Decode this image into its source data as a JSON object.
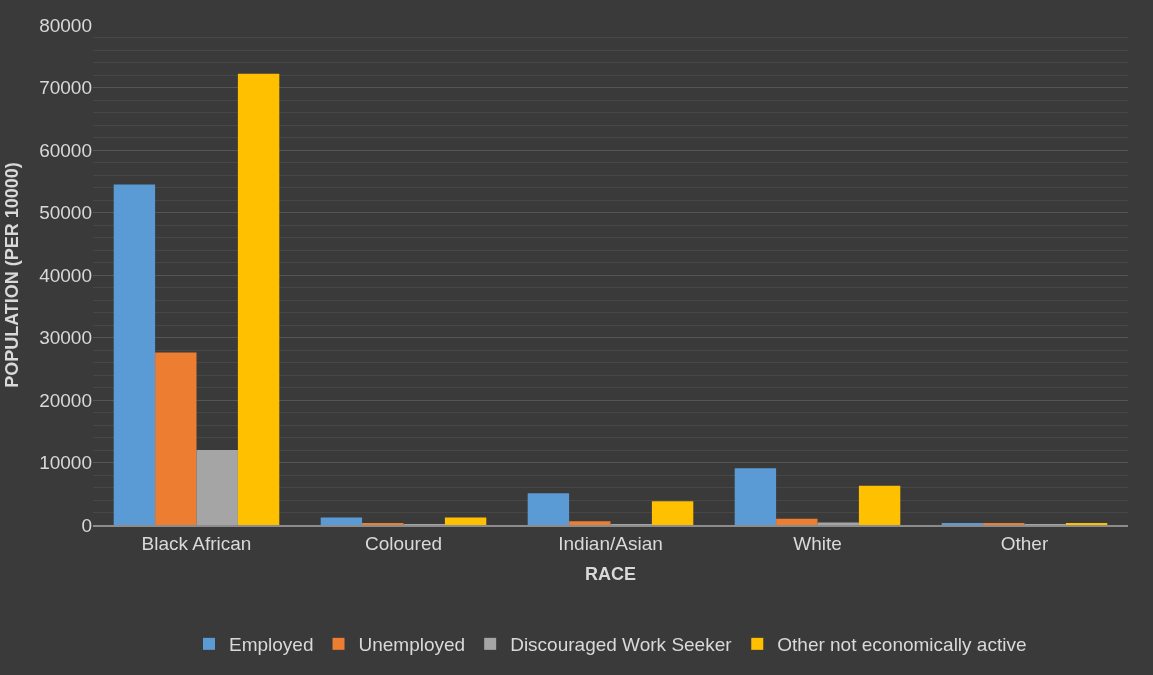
{
  "chart_data": {
    "type": "bar",
    "xlabel": "RACE",
    "ylabel": "POPULATION (PER 10000)",
    "categories": [
      "Black African",
      "Coloured",
      "Indian/Asian",
      "White",
      "Other"
    ],
    "series": [
      {
        "name": "Employed",
        "color": "#5b9bd5",
        "values": [
          54500,
          1200,
          5100,
          9100,
          300
        ]
      },
      {
        "name": "Unemployed",
        "color": "#ed7d31",
        "values": [
          27600,
          300,
          600,
          1000,
          200
        ]
      },
      {
        "name": "Discouraged Work Seeker",
        "color": "#a5a5a5",
        "values": [
          12000,
          100,
          100,
          400,
          100
        ]
      },
      {
        "name": "Other not economically active",
        "color": "#ffc000",
        "values": [
          72200,
          1200,
          3800,
          6300,
          200
        ]
      }
    ],
    "ylim": [
      0,
      80000
    ],
    "yticks": [
      0,
      10000,
      20000,
      30000,
      40000,
      50000,
      60000,
      70000,
      80000
    ],
    "grid": "y",
    "legend": "bottom"
  }
}
